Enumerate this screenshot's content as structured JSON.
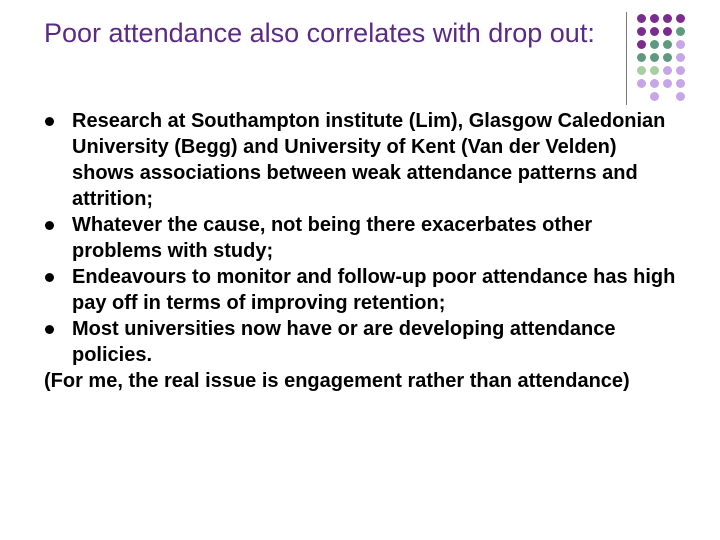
{
  "slide": {
    "title": "Poor attendance also correlates with drop out:",
    "bullets": [
      "Research at Southampton institute (Lim), Glasgow Caledonian University (Begg) and University of Kent (Van der Velden) shows associations between weak attendance patterns and attrition;",
      "Whatever the cause, not being there exacerbates other problems with study;",
      "Endeavours to monitor and follow-up poor attendance has high pay off in terms of improving retention;",
      "Most universities now have or are developing attendance policies."
    ],
    "note": "(For me, the real issue is engagement rather than attendance)"
  },
  "decoration": {
    "colors": {
      "purple": "#7b2d8e",
      "green": "#5f9a80",
      "light_green": "#a8cfa0",
      "lavender": "#c6a6e6",
      "title": "#5b2a86",
      "divider": "#7a7a7a"
    },
    "dot_grid": [
      [
        "purple",
        "purple",
        "purple",
        "purple"
      ],
      [
        "purple",
        "purple",
        "purple",
        "green"
      ],
      [
        "purple",
        "green",
        "green",
        "lavender"
      ],
      [
        "green",
        "green",
        "green",
        "lavender"
      ],
      [
        "light_green",
        "light_green",
        "lavender",
        "lavender"
      ],
      [
        "lavender",
        "lavender",
        "lavender",
        "lavender"
      ],
      [
        "",
        "lavender",
        "",
        "lavender"
      ]
    ]
  }
}
